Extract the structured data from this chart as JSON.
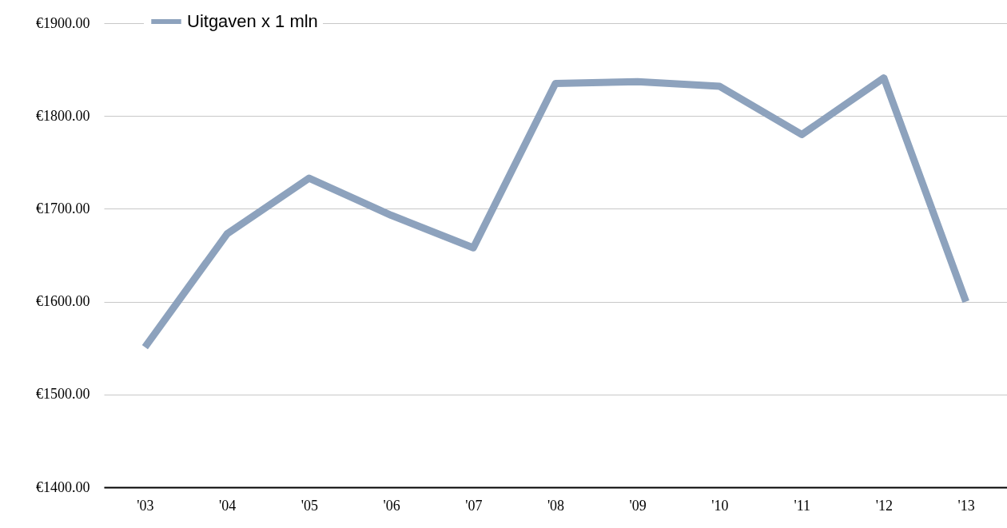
{
  "chart_data": {
    "type": "line",
    "categories": [
      "'03",
      "'04",
      "'05",
      "'06",
      "'07",
      "'08",
      "'09",
      "'10",
      "'11",
      "'12",
      "'13"
    ],
    "series": [
      {
        "name": "Uitgaven x 1 mln",
        "color": "#8da2bd",
        "values": [
          1551,
          1673,
          1733,
          1693,
          1658,
          1835,
          1837,
          1832,
          1780,
          1841,
          1600
        ]
      }
    ],
    "ylim": [
      1400,
      1900
    ],
    "yticks": [
      {
        "value": 1400,
        "label": "€1400.00"
      },
      {
        "value": 1500,
        "label": "€1500.00"
      },
      {
        "value": 1600,
        "label": "€1600.00"
      },
      {
        "value": 1700,
        "label": "€1700.00"
      },
      {
        "value": 1800,
        "label": "€1800.00"
      },
      {
        "value": 1900,
        "label": "€1900.00"
      }
    ],
    "grid": "y",
    "legend": "top left",
    "marker": "none",
    "line_style": "solid"
  }
}
